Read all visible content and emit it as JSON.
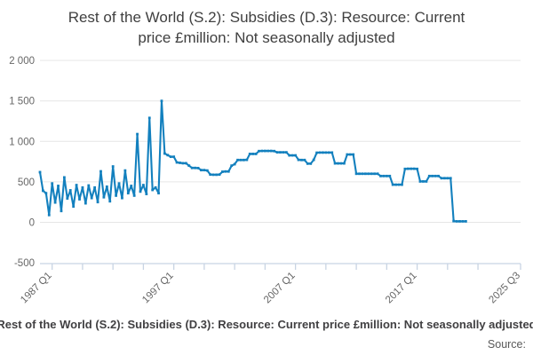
{
  "header": {
    "title_line1": "Rest of the World (S.2): Subsidies (D.3): Resource: Current",
    "title_line2": "price £million: Not seasonally adjusted"
  },
  "footer": {
    "series_title": "Rest of the World (S.2): Subsidies (D.3): Resource: Current price £million: Not seasonally adjusted",
    "source_label": "Source:"
  },
  "chart_data": {
    "type": "line",
    "title": "Rest of the World (S.2): Subsidies (D.3): Resource: Current price £million: Not seasonally adjusted",
    "x_start": "1986 Q1",
    "x_end": "2021 Q1",
    "x_axis_end": "2025 Q3",
    "frequency": "quarterly",
    "ylim": [
      -500,
      2000
    ],
    "y_ticks": [
      2000,
      1500,
      1000,
      500,
      0,
      -500
    ],
    "y_tick_labels": [
      "2 000",
      "1 500",
      "1 000",
      "500",
      "0",
      "-500"
    ],
    "x_labeled_ticks": [
      {
        "label": "1987 Q1",
        "q": 4
      },
      {
        "label": "1997 Q1",
        "q": 44
      },
      {
        "label": "2007 Q1",
        "q": 84
      },
      {
        "label": "2017 Q1",
        "q": 124
      },
      {
        "label": "2025 Q3",
        "q": 158
      }
    ],
    "x_minor_tick_step_quarters": 10,
    "grid": "horizontal",
    "legend": "none",
    "line_color": "#1380be",
    "grid_color": "#e6e6e6",
    "axis_color": "#c8d4e3",
    "tick_label_color": "#666666",
    "quarterly_values": [
      620,
      390,
      360,
      90,
      480,
      245,
      450,
      140,
      555,
      295,
      395,
      195,
      460,
      285,
      430,
      235,
      455,
      300,
      430,
      250,
      630,
      310,
      440,
      260,
      690,
      330,
      480,
      300,
      640,
      360,
      450,
      330,
      1090,
      380,
      460,
      350,
      1290,
      400,
      430,
      360,
      1500,
      850,
      830,
      810,
      810,
      740,
      735,
      730,
      730,
      700,
      672,
      672,
      670,
      645,
      645,
      640,
      590,
      588,
      588,
      590,
      625,
      628,
      628,
      700,
      718,
      770,
      770,
      770,
      772,
      845,
      845,
      845,
      880,
      882,
      882,
      882,
      882,
      880,
      865,
      865,
      865,
      865,
      827,
      827,
      827,
      772,
      770,
      770,
      725,
      725,
      772,
      860,
      862,
      862,
      862,
      862,
      862,
      728,
      728,
      728,
      728,
      838,
      838,
      838,
      600,
      600,
      600,
      600,
      600,
      600,
      600,
      600,
      572,
      572,
      572,
      572,
      465,
      465,
      465,
      465,
      660,
      662,
      662,
      662,
      660,
      505,
      505,
      505,
      572,
      572,
      572,
      572,
      545,
      545,
      545,
      545,
      15,
      12,
      12,
      12,
      12
    ]
  }
}
